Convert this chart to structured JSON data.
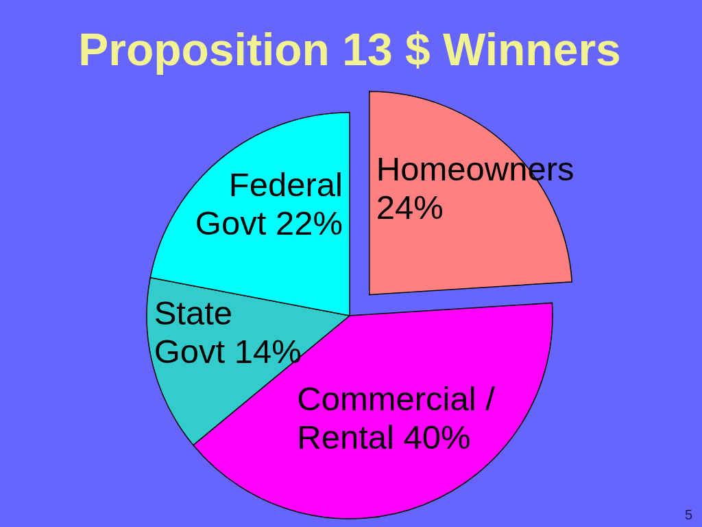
{
  "chart_data": {
    "type": "pie",
    "title": "Proposition 13 $ Winners",
    "categories": [
      "Homeowners",
      "Commercial / Rental",
      "State Govt",
      "Federal Govt"
    ],
    "values": [
      24,
      40,
      14,
      22
    ],
    "colors": [
      "#ff8080",
      "#ff00ff",
      "#33cccc",
      "#00ffff"
    ],
    "value_labels": [
      "24%",
      "40%",
      "14%",
      "22%"
    ],
    "annotations": [
      "5"
    ]
  }
}
